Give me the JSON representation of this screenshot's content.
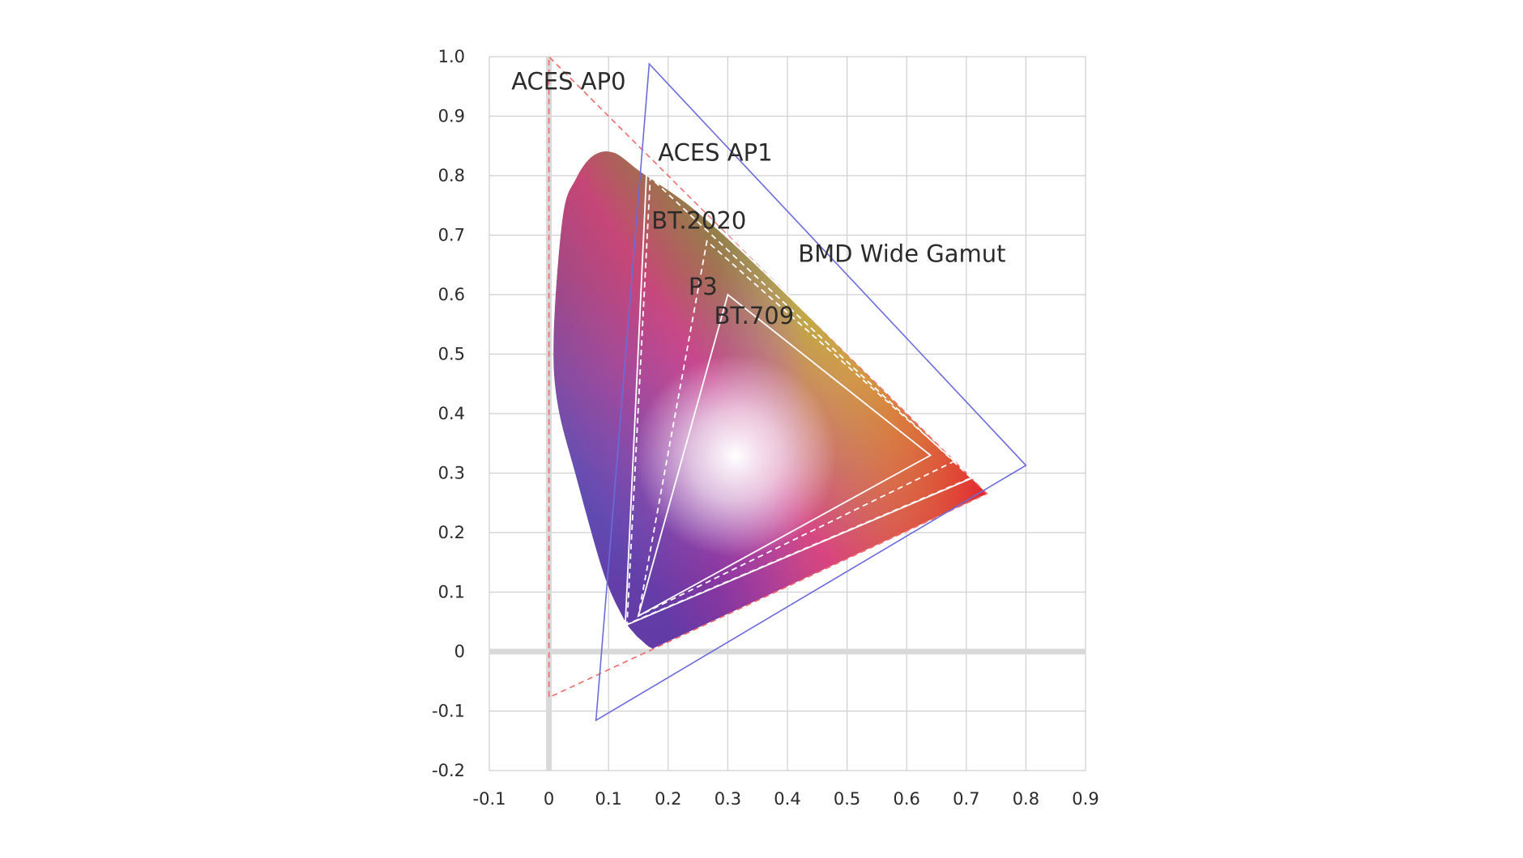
{
  "chart_data": {
    "type": "scatter",
    "subtype": "cie-1931-chromaticity-gamut-comparison",
    "title": "",
    "xlabel": "",
    "ylabel": "",
    "xlim": [
      -0.1,
      0.9
    ],
    "ylim": [
      -0.2,
      1.0
    ],
    "x_ticks": [
      -0.1,
      0,
      0.1,
      0.2,
      0.3,
      0.4,
      0.5,
      0.6,
      0.7,
      0.8,
      0.9
    ],
    "x_tick_labels": [
      "-0.1",
      "0",
      "0.1",
      "0.2",
      "0.3",
      "0.4",
      "0.5",
      "0.6",
      "0.7",
      "0.8",
      "0.9"
    ],
    "y_ticks": [
      1.0,
      0.9,
      0.8,
      0.7,
      0.6,
      0.5,
      0.4,
      0.3,
      0.2,
      0.1,
      0,
      -0.1,
      -0.2
    ],
    "y_tick_labels": [
      "1.0",
      "0.9",
      "0.8",
      "0.7",
      "0.6",
      "0.5",
      "0.4",
      "0.3",
      "0.2",
      "0.1",
      "0",
      "-0.1",
      "-0.2"
    ],
    "grid": true,
    "spectral_locus": [
      [
        0.7347,
        0.2653
      ],
      [
        0.6915,
        0.3083
      ],
      [
        0.627,
        0.3725
      ],
      [
        0.5752,
        0.4242
      ],
      [
        0.5125,
        0.4866
      ],
      [
        0.4441,
        0.5547
      ],
      [
        0.3731,
        0.6245
      ],
      [
        0.3016,
        0.6923
      ],
      [
        0.2296,
        0.7543
      ],
      [
        0.1547,
        0.8059
      ],
      [
        0.1096,
        0.8383
      ],
      [
        0.0743,
        0.8338
      ],
      [
        0.0454,
        0.795
      ],
      [
        0.0235,
        0.7327
      ],
      [
        0.0082,
        0.5384
      ],
      [
        0.0139,
        0.4202
      ],
      [
        0.0454,
        0.295
      ],
      [
        0.0913,
        0.1327
      ],
      [
        0.1241,
        0.0578
      ],
      [
        0.144,
        0.0297
      ],
      [
        0.1566,
        0.0177
      ],
      [
        0.1666,
        0.0089
      ],
      [
        0.1741,
        0.005
      ]
    ],
    "series": [
      {
        "name": "ACES AP0",
        "color": "#f26a6a",
        "dashed": true,
        "primaries": [
          [
            0.7347,
            0.2653
          ],
          [
            0.0,
            1.0
          ],
          [
            0.0001,
            -0.077
          ]
        ]
      },
      {
        "name": "BMD Wide Gamut",
        "color": "#6b6bdc",
        "dashed": false,
        "primaries": [
          [
            0.8,
            0.313
          ],
          [
            0.1682,
            0.9877
          ],
          [
            0.079,
            -0.1155
          ]
        ]
      },
      {
        "name": "ACES AP1",
        "color": "#ffffff",
        "dashed": false,
        "primaries": [
          [
            0.713,
            0.293
          ],
          [
            0.165,
            0.83
          ],
          [
            0.128,
            0.044
          ]
        ]
      },
      {
        "name": "BT.2020",
        "color": "#ffffff",
        "dashed": true,
        "primaries": [
          [
            0.708,
            0.292
          ],
          [
            0.17,
            0.797
          ],
          [
            0.131,
            0.046
          ]
        ]
      },
      {
        "name": "P3",
        "color": "#ffffff",
        "dashed": true,
        "primaries": [
          [
            0.68,
            0.32
          ],
          [
            0.265,
            0.69
          ],
          [
            0.15,
            0.06
          ]
        ]
      },
      {
        "name": "BT.709",
        "color": "#ffffff",
        "dashed": false,
        "primaries": [
          [
            0.64,
            0.33
          ],
          [
            0.3,
            0.6
          ],
          [
            0.15,
            0.06
          ]
        ]
      }
    ],
    "annotations": [
      {
        "text": "ACES AP0",
        "x": -0.063,
        "y": 0.945
      },
      {
        "text": "ACES AP1",
        "x": 0.183,
        "y": 0.825
      },
      {
        "text": "BT.2020",
        "x": 0.172,
        "y": 0.711
      },
      {
        "text": "BMD Wide Gamut",
        "x": 0.418,
        "y": 0.655
      },
      {
        "text": "P3",
        "x": 0.234,
        "y": 0.6
      },
      {
        "text": "BT.709",
        "x": 0.277,
        "y": 0.551
      }
    ]
  }
}
